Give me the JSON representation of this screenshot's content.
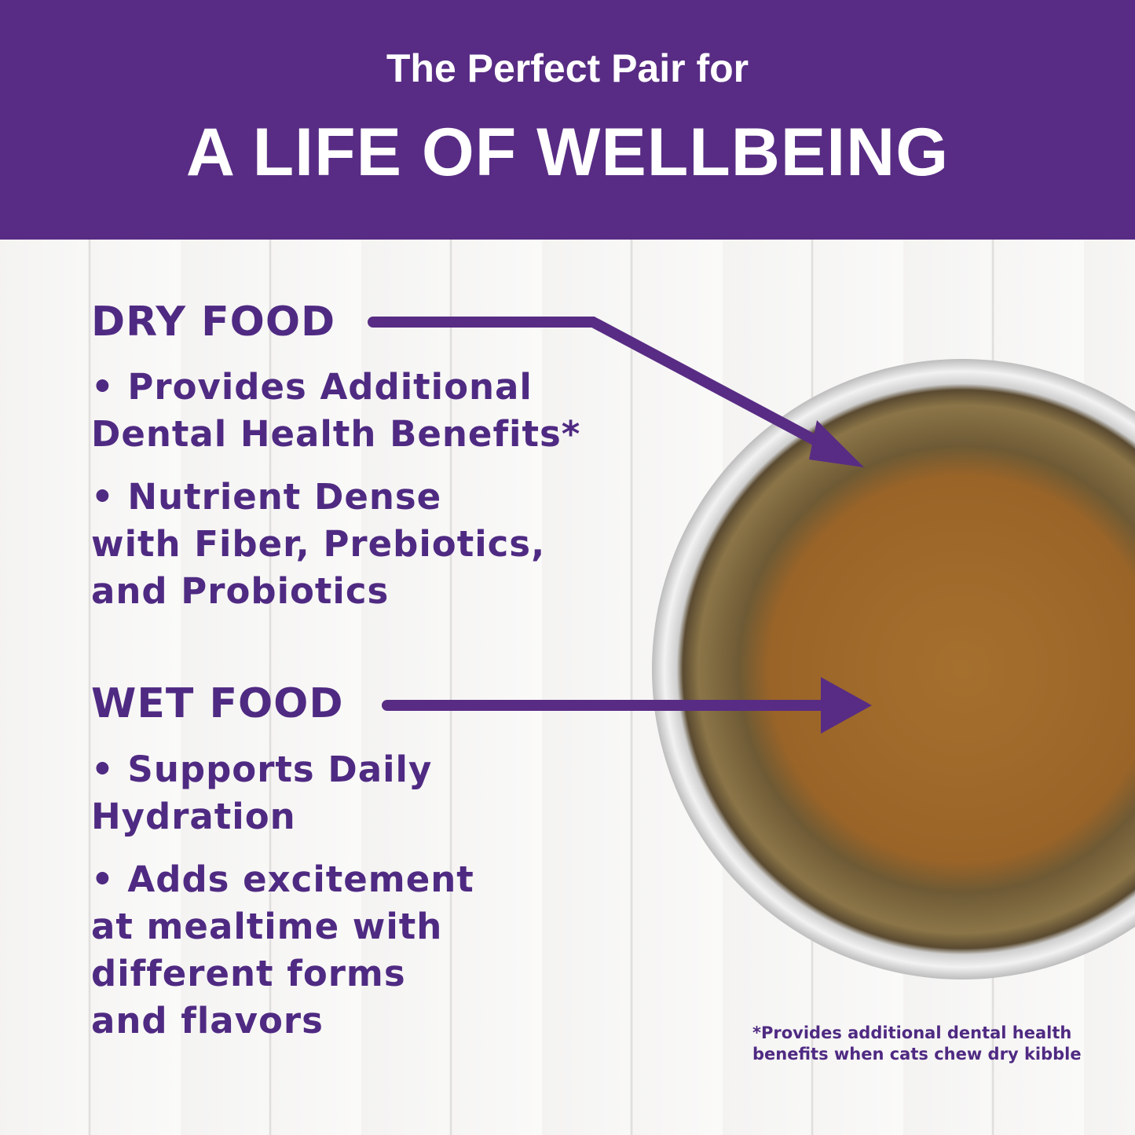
{
  "header": {
    "subtitle": "The Perfect Pair for",
    "title": "A LIFE OF WELLBEING"
  },
  "dry": {
    "heading": "DRY FOOD",
    "bullets": [
      "• Provides Additional",
      "Dental Health Benefits*",
      "• Nutrient Dense",
      "with Fiber, Prebiotics,",
      "and Probiotics"
    ]
  },
  "wet": {
    "heading": "WET FOOD",
    "bullets": [
      "• Supports Daily",
      "Hydration",
      "• Adds excitement",
      "at mealtime with",
      "different forms",
      "and flavors"
    ]
  },
  "footnote": [
    "*Provides additional dental health",
    "benefits when cats chew dry kibble"
  ],
  "colors": {
    "brand": "#582c84",
    "text": "#4f2a82"
  }
}
